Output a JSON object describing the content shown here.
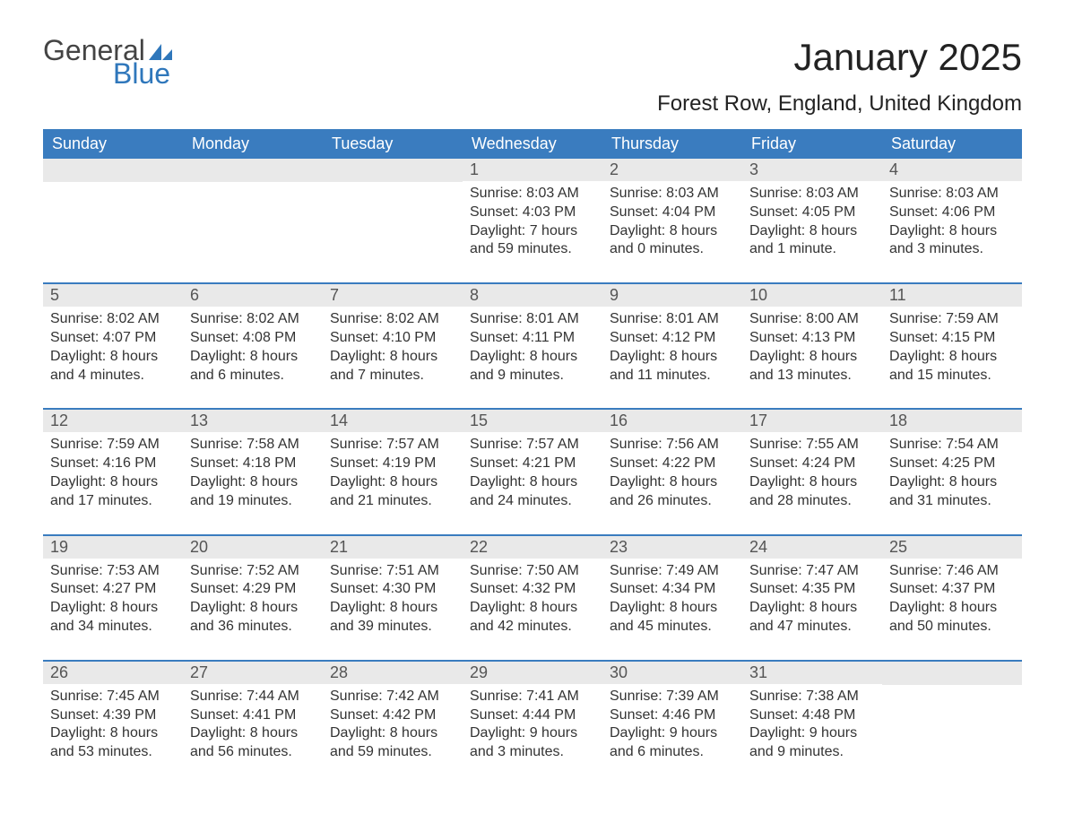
{
  "logo": {
    "text_top": "General",
    "text_bottom": "Blue",
    "flag_color": "#2f77bb",
    "top_color": "#444444",
    "bottom_color": "#2f77bb"
  },
  "title": "January 2025",
  "location": "Forest Row, England, United Kingdom",
  "colors": {
    "header_bg": "#3a7cbf",
    "header_text": "#ffffff",
    "daynum_bg": "#e9e9e9",
    "daynum_text": "#555555",
    "body_text": "#333333",
    "week_border": "#3a7cbf"
  },
  "day_headers": [
    "Sunday",
    "Monday",
    "Tuesday",
    "Wednesday",
    "Thursday",
    "Friday",
    "Saturday"
  ],
  "weeks": [
    [
      null,
      null,
      null,
      {
        "n": "1",
        "sunrise": "Sunrise: 8:03 AM",
        "sunset": "Sunset: 4:03 PM",
        "d1": "Daylight: 7 hours",
        "d2": "and 59 minutes."
      },
      {
        "n": "2",
        "sunrise": "Sunrise: 8:03 AM",
        "sunset": "Sunset: 4:04 PM",
        "d1": "Daylight: 8 hours",
        "d2": "and 0 minutes."
      },
      {
        "n": "3",
        "sunrise": "Sunrise: 8:03 AM",
        "sunset": "Sunset: 4:05 PM",
        "d1": "Daylight: 8 hours",
        "d2": "and 1 minute."
      },
      {
        "n": "4",
        "sunrise": "Sunrise: 8:03 AM",
        "sunset": "Sunset: 4:06 PM",
        "d1": "Daylight: 8 hours",
        "d2": "and 3 minutes."
      }
    ],
    [
      {
        "n": "5",
        "sunrise": "Sunrise: 8:02 AM",
        "sunset": "Sunset: 4:07 PM",
        "d1": "Daylight: 8 hours",
        "d2": "and 4 minutes."
      },
      {
        "n": "6",
        "sunrise": "Sunrise: 8:02 AM",
        "sunset": "Sunset: 4:08 PM",
        "d1": "Daylight: 8 hours",
        "d2": "and 6 minutes."
      },
      {
        "n": "7",
        "sunrise": "Sunrise: 8:02 AM",
        "sunset": "Sunset: 4:10 PM",
        "d1": "Daylight: 8 hours",
        "d2": "and 7 minutes."
      },
      {
        "n": "8",
        "sunrise": "Sunrise: 8:01 AM",
        "sunset": "Sunset: 4:11 PM",
        "d1": "Daylight: 8 hours",
        "d2": "and 9 minutes."
      },
      {
        "n": "9",
        "sunrise": "Sunrise: 8:01 AM",
        "sunset": "Sunset: 4:12 PM",
        "d1": "Daylight: 8 hours",
        "d2": "and 11 minutes."
      },
      {
        "n": "10",
        "sunrise": "Sunrise: 8:00 AM",
        "sunset": "Sunset: 4:13 PM",
        "d1": "Daylight: 8 hours",
        "d2": "and 13 minutes."
      },
      {
        "n": "11",
        "sunrise": "Sunrise: 7:59 AM",
        "sunset": "Sunset: 4:15 PM",
        "d1": "Daylight: 8 hours",
        "d2": "and 15 minutes."
      }
    ],
    [
      {
        "n": "12",
        "sunrise": "Sunrise: 7:59 AM",
        "sunset": "Sunset: 4:16 PM",
        "d1": "Daylight: 8 hours",
        "d2": "and 17 minutes."
      },
      {
        "n": "13",
        "sunrise": "Sunrise: 7:58 AM",
        "sunset": "Sunset: 4:18 PM",
        "d1": "Daylight: 8 hours",
        "d2": "and 19 minutes."
      },
      {
        "n": "14",
        "sunrise": "Sunrise: 7:57 AM",
        "sunset": "Sunset: 4:19 PM",
        "d1": "Daylight: 8 hours",
        "d2": "and 21 minutes."
      },
      {
        "n": "15",
        "sunrise": "Sunrise: 7:57 AM",
        "sunset": "Sunset: 4:21 PM",
        "d1": "Daylight: 8 hours",
        "d2": "and 24 minutes."
      },
      {
        "n": "16",
        "sunrise": "Sunrise: 7:56 AM",
        "sunset": "Sunset: 4:22 PM",
        "d1": "Daylight: 8 hours",
        "d2": "and 26 minutes."
      },
      {
        "n": "17",
        "sunrise": "Sunrise: 7:55 AM",
        "sunset": "Sunset: 4:24 PM",
        "d1": "Daylight: 8 hours",
        "d2": "and 28 minutes."
      },
      {
        "n": "18",
        "sunrise": "Sunrise: 7:54 AM",
        "sunset": "Sunset: 4:25 PM",
        "d1": "Daylight: 8 hours",
        "d2": "and 31 minutes."
      }
    ],
    [
      {
        "n": "19",
        "sunrise": "Sunrise: 7:53 AM",
        "sunset": "Sunset: 4:27 PM",
        "d1": "Daylight: 8 hours",
        "d2": "and 34 minutes."
      },
      {
        "n": "20",
        "sunrise": "Sunrise: 7:52 AM",
        "sunset": "Sunset: 4:29 PM",
        "d1": "Daylight: 8 hours",
        "d2": "and 36 minutes."
      },
      {
        "n": "21",
        "sunrise": "Sunrise: 7:51 AM",
        "sunset": "Sunset: 4:30 PM",
        "d1": "Daylight: 8 hours",
        "d2": "and 39 minutes."
      },
      {
        "n": "22",
        "sunrise": "Sunrise: 7:50 AM",
        "sunset": "Sunset: 4:32 PM",
        "d1": "Daylight: 8 hours",
        "d2": "and 42 minutes."
      },
      {
        "n": "23",
        "sunrise": "Sunrise: 7:49 AM",
        "sunset": "Sunset: 4:34 PM",
        "d1": "Daylight: 8 hours",
        "d2": "and 45 minutes."
      },
      {
        "n": "24",
        "sunrise": "Sunrise: 7:47 AM",
        "sunset": "Sunset: 4:35 PM",
        "d1": "Daylight: 8 hours",
        "d2": "and 47 minutes."
      },
      {
        "n": "25",
        "sunrise": "Sunrise: 7:46 AM",
        "sunset": "Sunset: 4:37 PM",
        "d1": "Daylight: 8 hours",
        "d2": "and 50 minutes."
      }
    ],
    [
      {
        "n": "26",
        "sunrise": "Sunrise: 7:45 AM",
        "sunset": "Sunset: 4:39 PM",
        "d1": "Daylight: 8 hours",
        "d2": "and 53 minutes."
      },
      {
        "n": "27",
        "sunrise": "Sunrise: 7:44 AM",
        "sunset": "Sunset: 4:41 PM",
        "d1": "Daylight: 8 hours",
        "d2": "and 56 minutes."
      },
      {
        "n": "28",
        "sunrise": "Sunrise: 7:42 AM",
        "sunset": "Sunset: 4:42 PM",
        "d1": "Daylight: 8 hours",
        "d2": "and 59 minutes."
      },
      {
        "n": "29",
        "sunrise": "Sunrise: 7:41 AM",
        "sunset": "Sunset: 4:44 PM",
        "d1": "Daylight: 9 hours",
        "d2": "and 3 minutes."
      },
      {
        "n": "30",
        "sunrise": "Sunrise: 7:39 AM",
        "sunset": "Sunset: 4:46 PM",
        "d1": "Daylight: 9 hours",
        "d2": "and 6 minutes."
      },
      {
        "n": "31",
        "sunrise": "Sunrise: 7:38 AM",
        "sunset": "Sunset: 4:48 PM",
        "d1": "Daylight: 9 hours",
        "d2": "and 9 minutes."
      },
      null
    ]
  ]
}
